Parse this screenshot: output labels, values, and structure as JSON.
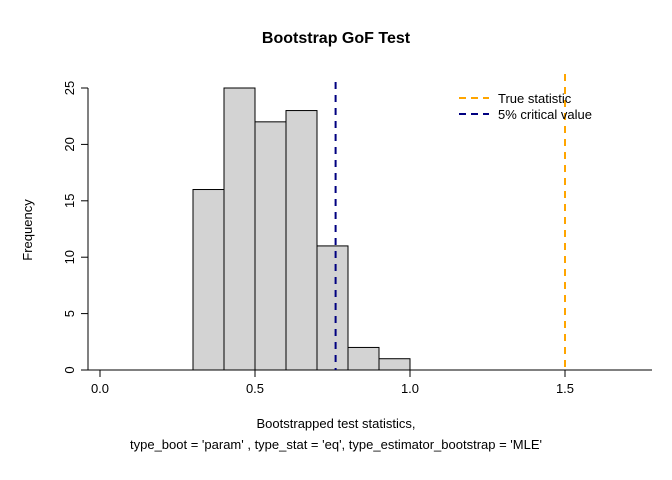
{
  "chart_data": {
    "type": "bar",
    "subtype": "histogram",
    "title": "Bootstrap GoF Test",
    "ylabel": "Frequency",
    "xlabel_line1": "Bootstrapped test statistics,",
    "xlabel_line2": "type_boot = 'param' , type_stat = 'eq', type_estimator_bootstrap = 'MLE'",
    "bin_breaks": [
      0.3,
      0.4,
      0.5,
      0.6,
      0.7,
      0.8,
      0.9,
      1.0
    ],
    "counts": [
      16,
      25,
      22,
      23,
      11,
      2,
      1
    ],
    "x_ticks": [
      0.0,
      0.5,
      1.0,
      1.5
    ],
    "y_ticks": [
      0,
      5,
      10,
      15,
      20,
      25
    ],
    "xlim": [
      0.0,
      1.5
    ],
    "ylim": [
      0,
      25
    ],
    "grid": false,
    "bar_fill": "#d3d3d3",
    "bar_stroke": "#000000",
    "axis_color": "#000000",
    "true_statistic": {
      "value": 1.5,
      "color": "#ffa500",
      "label": "True statistic"
    },
    "critical_value": {
      "value": 0.76,
      "color": "#000080",
      "label": "5% critical value"
    },
    "legend_position": "top-right"
  }
}
